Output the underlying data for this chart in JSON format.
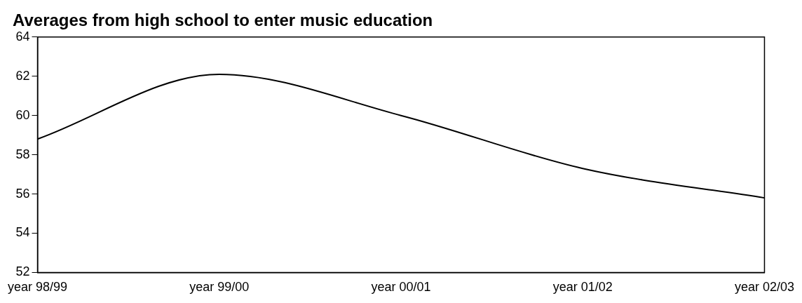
{
  "chart_data": {
    "type": "line",
    "title": "Averages from high school to enter music education",
    "categories": [
      "year 98/99",
      "year 99/00",
      "year 00/01",
      "year 01/02",
      "year 02/03"
    ],
    "values": [
      58.8,
      62.1,
      60.0,
      57.3,
      55.8
    ],
    "color": "#000000",
    "ylim": [
      52,
      64
    ],
    "yticks": [
      52,
      54,
      56,
      58,
      60,
      62,
      64
    ],
    "grid": false,
    "marker": "none",
    "line_style": "solid",
    "legend": false
  }
}
